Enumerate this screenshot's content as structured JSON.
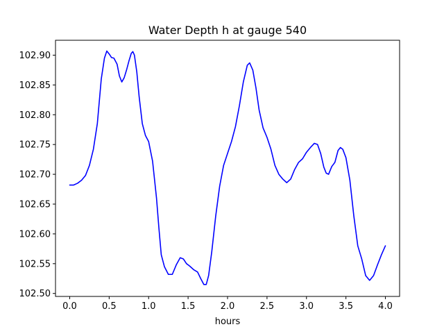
{
  "chart_data": {
    "type": "line",
    "title": "Water Depth h at gauge 540",
    "xlabel": "hours",
    "ylabel": "",
    "xlim": [
      -0.18,
      4.18
    ],
    "ylim": [
      102.495,
      102.925
    ],
    "grid": false,
    "x_ticks": [
      0.0,
      0.5,
      1.0,
      1.5,
      2.0,
      2.5,
      3.0,
      3.5,
      4.0
    ],
    "x_tick_labels": [
      "0.0",
      "0.5",
      "1.0",
      "1.5",
      "2.0",
      "2.5",
      "3.0",
      "3.5",
      "4.0"
    ],
    "y_ticks": [
      102.5,
      102.55,
      102.6,
      102.65,
      102.7,
      102.75,
      102.8,
      102.85,
      102.9
    ],
    "y_tick_labels": [
      "102.50",
      "102.55",
      "102.60",
      "102.65",
      "102.70",
      "102.75",
      "102.80",
      "102.85",
      "102.90"
    ],
    "series": [
      {
        "color": "#0000ff",
        "x": [
          0.0,
          0.05,
          0.1,
          0.15,
          0.2,
          0.25,
          0.3,
          0.35,
          0.4,
          0.44,
          0.47,
          0.5,
          0.53,
          0.56,
          0.6,
          0.63,
          0.66,
          0.69,
          0.72,
          0.75,
          0.78,
          0.8,
          0.82,
          0.85,
          0.88,
          0.92,
          0.96,
          1.0,
          1.05,
          1.1,
          1.13,
          1.16,
          1.2,
          1.25,
          1.3,
          1.35,
          1.4,
          1.44,
          1.48,
          1.52,
          1.57,
          1.62,
          1.66,
          1.7,
          1.73,
          1.76,
          1.8,
          1.85,
          1.9,
          1.95,
          2.0,
          2.05,
          2.1,
          2.15,
          2.2,
          2.25,
          2.28,
          2.32,
          2.36,
          2.4,
          2.45,
          2.5,
          2.55,
          2.6,
          2.65,
          2.7,
          2.75,
          2.8,
          2.85,
          2.9,
          2.95,
          3.0,
          3.05,
          3.1,
          3.14,
          3.18,
          3.22,
          3.25,
          3.28,
          3.32,
          3.36,
          3.4,
          3.43,
          3.46,
          3.5,
          3.55,
          3.6,
          3.65,
          3.7,
          3.75,
          3.8,
          3.85,
          3.9,
          3.95,
          4.0
        ],
        "y": [
          102.682,
          102.682,
          102.685,
          102.69,
          102.698,
          102.715,
          102.742,
          102.785,
          102.86,
          102.895,
          102.907,
          102.902,
          102.896,
          102.895,
          102.885,
          102.865,
          102.855,
          102.862,
          102.875,
          102.89,
          102.903,
          102.906,
          102.9,
          102.872,
          102.83,
          102.785,
          102.765,
          102.755,
          102.722,
          102.66,
          102.61,
          102.565,
          102.545,
          102.532,
          102.532,
          102.548,
          102.56,
          102.558,
          102.55,
          102.546,
          102.54,
          102.536,
          102.525,
          102.515,
          102.515,
          102.53,
          102.57,
          102.63,
          102.68,
          102.715,
          102.735,
          102.755,
          102.78,
          102.815,
          102.855,
          102.883,
          102.887,
          102.875,
          102.845,
          102.808,
          102.778,
          102.762,
          102.742,
          102.715,
          102.7,
          102.692,
          102.686,
          102.692,
          102.708,
          102.72,
          102.726,
          102.737,
          102.745,
          102.752,
          102.75,
          102.735,
          102.712,
          102.702,
          102.7,
          102.713,
          102.72,
          102.74,
          102.745,
          102.742,
          102.728,
          102.69,
          102.63,
          102.58,
          102.558,
          102.53,
          102.522,
          102.53,
          102.548,
          102.565,
          102.58
        ]
      }
    ]
  }
}
